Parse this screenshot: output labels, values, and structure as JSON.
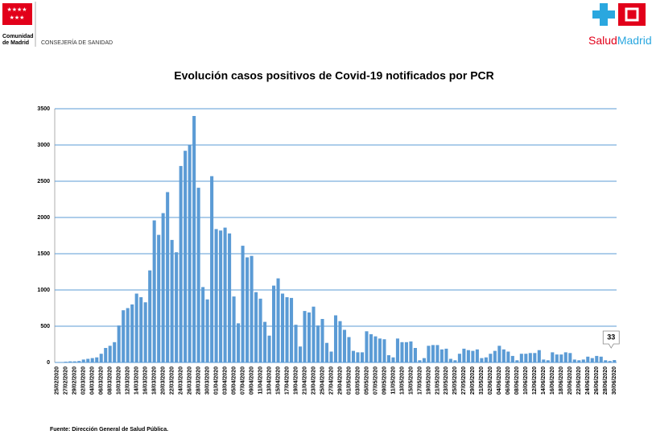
{
  "header": {
    "org_line1": "Comunidad",
    "org_line2": "de Madrid",
    "department": "CONSEJERÍA DE SANIDAD",
    "brand_left": "Salud",
    "brand_right": "Madrid"
  },
  "footer": {
    "source": "Fuente: Dirección General de Salud Pública."
  },
  "chart_data": {
    "type": "bar",
    "title": "Evolución casos positivos de Covid-19 notificados por PCR",
    "color": "#5b9bd5",
    "grid": true,
    "ylim": [
      0,
      3500
    ],
    "yticks": [
      0,
      500,
      1000,
      1500,
      2000,
      2500,
      3000,
      3500
    ],
    "categories": [
      "25/02/2020",
      null,
      "27/02/2020",
      null,
      "29/02/2020",
      null,
      "02/03/2020",
      null,
      "04/03/2020",
      null,
      "06/03/2020",
      null,
      "08/03/2020",
      null,
      "10/03/2020",
      null,
      "12/03/2020",
      null,
      "14/03/2020",
      null,
      "16/03/2020",
      null,
      "18/03/2020",
      null,
      "20/03/2020",
      null,
      "22/03/2020",
      null,
      "24/03/2020",
      null,
      "26/03/2020",
      null,
      "28/03/2020",
      null,
      "30/03/2020",
      null,
      "01/04/2020",
      null,
      "03/04/2020",
      null,
      "05/04/2020",
      null,
      "07/04/2020",
      null,
      "09/04/2020",
      null,
      "11/04/2020",
      null,
      "13/04/2020",
      null,
      "15/04/2020",
      null,
      "17/04/2020",
      null,
      "19/04/2020",
      null,
      "21/04/2020",
      null,
      "23/04/2020",
      null,
      "25/04/2020",
      null,
      "27/04/2020",
      null,
      "29/04/2020",
      null,
      "01/05/2020",
      null,
      "03/05/2020",
      null,
      "05/05/2020",
      null,
      "07/05/2020",
      null,
      "09/05/2020",
      null,
      "11/05/2020",
      null,
      "13/05/2020",
      null,
      "15/05/2020",
      null,
      "17/05/2020",
      null,
      "19/05/2020",
      null,
      "21/05/2020",
      null,
      "23/05/2020",
      null,
      "25/05/2020",
      null,
      "27/05/2020",
      null,
      "29/05/2020",
      null,
      "31/05/2020",
      null,
      "02/06/2020",
      null,
      "04/06/2020",
      null,
      "06/06/2020",
      null,
      "08/06/2020",
      null,
      "10/06/2020",
      null,
      "12/06/2020",
      null,
      "14/06/2020",
      null,
      "16/06/2020",
      null,
      "18/06/2020",
      null,
      "20/06/2020",
      null,
      "22/06/2020",
      null,
      "24/06/2020",
      null,
      "26/06/2020",
      null,
      "28/06/2020",
      null,
      "30/06/2020"
    ],
    "values": [
      5,
      5,
      10,
      15,
      15,
      20,
      40,
      50,
      60,
      70,
      120,
      200,
      230,
      280,
      510,
      720,
      750,
      800,
      950,
      900,
      830,
      1270,
      1960,
      1760,
      2060,
      2350,
      1690,
      1520,
      2710,
      2920,
      3000,
      3400,
      2410,
      1040,
      870,
      2570,
      1840,
      1820,
      1860,
      1780,
      910,
      540,
      1610,
      1450,
      1470,
      970,
      880,
      560,
      370,
      1060,
      1160,
      950,
      900,
      890,
      520,
      220,
      710,
      690,
      770,
      510,
      600,
      270,
      150,
      650,
      570,
      450,
      350,
      160,
      140,
      140,
      430,
      390,
      360,
      330,
      320,
      100,
      70,
      330,
      280,
      280,
      290,
      200,
      30,
      60,
      230,
      240,
      240,
      180,
      190,
      50,
      30,
      120,
      190,
      170,
      160,
      180,
      60,
      70,
      120,
      160,
      230,
      180,
      150,
      90,
      30,
      120,
      120,
      130,
      130,
      170,
      40,
      30,
      140,
      110,
      110,
      140,
      130,
      40,
      30,
      40,
      80,
      60,
      90,
      80,
      30,
      20,
      33
    ]
  }
}
